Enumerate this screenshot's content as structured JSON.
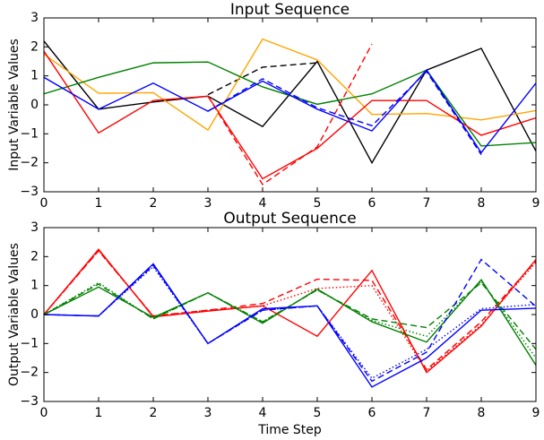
{
  "chart_data": [
    {
      "type": "line",
      "title": "Input Sequence",
      "xlabel": "",
      "ylabel": "Input Variable Values",
      "x": [
        0,
        1,
        2,
        3,
        4,
        5,
        6,
        7,
        8,
        9
      ],
      "xlim": [
        0,
        9
      ],
      "ylim": [
        -3,
        3
      ],
      "xticks": [
        "0",
        "1",
        "2",
        "3",
        "4",
        "5",
        "6",
        "7",
        "8",
        "9"
      ],
      "yticks": [
        "−3",
        "−2",
        "−1",
        "0",
        "1",
        "2",
        "3"
      ],
      "grid": false,
      "series": [
        {
          "color": "#000000",
          "dash": "solid",
          "values": [
            2.2,
            -0.15,
            0.1,
            0.3,
            -0.75,
            1.5,
            -2.0,
            1.2,
            1.95,
            -1.6
          ]
        },
        {
          "color": "#000000",
          "dash": "dashed",
          "values": [
            null,
            null,
            null,
            0.35,
            1.3,
            1.45,
            null,
            null,
            null,
            null
          ]
        },
        {
          "color": "#ffa500",
          "dash": "solid",
          "values": [
            1.75,
            0.4,
            0.42,
            -0.87,
            2.27,
            1.55,
            -0.33,
            -0.3,
            -0.52,
            -0.2
          ]
        },
        {
          "color": "#008000",
          "dash": "solid",
          "values": [
            0.38,
            0.95,
            1.45,
            1.48,
            0.62,
            0.02,
            0.38,
            1.2,
            -1.42,
            -1.3
          ]
        },
        {
          "color": "#ff0000",
          "dash": "solid",
          "values": [
            1.85,
            -0.97,
            0.15,
            0.3,
            -2.55,
            -1.5,
            0.15,
            0.15,
            -1.05,
            -0.45
          ]
        },
        {
          "color": "#ff0000",
          "dash": "dashed",
          "values": [
            null,
            null,
            null,
            0.3,
            -2.75,
            -1.45,
            2.1,
            null,
            null,
            null
          ]
        },
        {
          "color": "#0000ff",
          "dash": "solid",
          "values": [
            0.95,
            -0.15,
            0.75,
            -0.22,
            0.82,
            -0.15,
            -0.9,
            1.2,
            -1.65,
            0.75
          ]
        },
        {
          "color": "#0000ff",
          "dash": "dashed",
          "values": [
            null,
            null,
            null,
            -0.22,
            0.9,
            -0.1,
            -0.72,
            1.15,
            -1.72,
            null
          ]
        }
      ]
    },
    {
      "type": "line",
      "title": "Output Sequence",
      "xlabel": "Time Step",
      "ylabel": "Output Variable Values",
      "x": [
        0,
        1,
        2,
        3,
        4,
        5,
        6,
        7,
        8,
        9
      ],
      "xlim": [
        0,
        9
      ],
      "ylim": [
        -3,
        3
      ],
      "xticks": [
        "0",
        "1",
        "2",
        "3",
        "4",
        "5",
        "6",
        "7",
        "8",
        "9"
      ],
      "yticks": [
        "−3",
        "−2",
        "−1",
        "0",
        "1",
        "2",
        "3"
      ],
      "grid": false,
      "series": [
        {
          "color": "#ff0000",
          "dash": "solid",
          "values": [
            0,
            2.25,
            -0.08,
            0.12,
            0.3,
            -0.75,
            1.52,
            -2.0,
            -0.4,
            1.9
          ]
        },
        {
          "color": "#ff0000",
          "dash": "dashed",
          "values": [
            0,
            2.2,
            -0.05,
            0.15,
            0.38,
            1.22,
            1.18,
            -1.9,
            -0.25,
            1.85
          ]
        },
        {
          "color": "#ff0000",
          "dash": "dotted",
          "values": [
            0,
            2.2,
            -0.05,
            0.15,
            0.3,
            0.9,
            1.0,
            -1.95,
            -0.35,
            1.8
          ]
        },
        {
          "color": "#008000",
          "dash": "solid",
          "values": [
            0,
            0.95,
            -0.1,
            0.75,
            -0.3,
            0.88,
            -0.25,
            -0.95,
            1.2,
            -1.75
          ]
        },
        {
          "color": "#008000",
          "dash": "dashed",
          "values": [
            0,
            1.05,
            -0.15,
            0.75,
            -0.25,
            0.85,
            -0.15,
            -0.45,
            1.1,
            -1.2
          ]
        },
        {
          "color": "#008000",
          "dash": "dotted",
          "values": [
            0,
            1.1,
            -0.15,
            0.75,
            -0.25,
            0.85,
            -0.2,
            -0.75,
            1.15,
            -1.5
          ]
        },
        {
          "color": "#0000ff",
          "dash": "solid",
          "values": [
            0,
            -0.05,
            1.75,
            -1.0,
            0.2,
            0.3,
            -2.5,
            -1.5,
            0.15,
            0.22
          ]
        },
        {
          "color": "#0000ff",
          "dash": "dashed",
          "values": [
            0,
            -0.05,
            1.7,
            -1.0,
            0.15,
            0.3,
            -2.3,
            -1.3,
            1.9,
            0.28
          ]
        },
        {
          "color": "#0000ff",
          "dash": "dotted",
          "values": [
            0,
            -0.05,
            1.65,
            -1.0,
            0.15,
            0.3,
            -2.2,
            -1.2,
            0.2,
            0.35
          ]
        }
      ]
    }
  ]
}
